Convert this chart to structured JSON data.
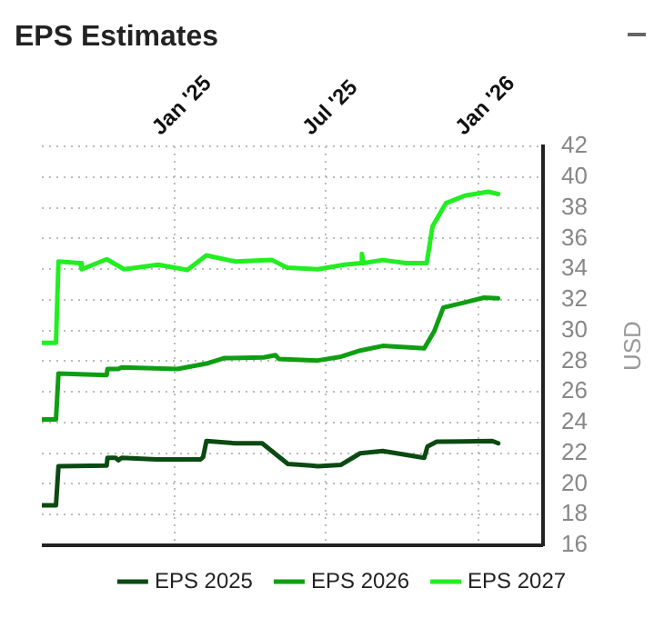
{
  "chart_data": {
    "type": "line",
    "title": "EPS Estimates",
    "ylabel": "USD",
    "xlim": [
      "2024-07-25",
      "2026-03-20"
    ],
    "xticks": [
      {
        "value": "2025-01-01",
        "label": "Jan '25"
      },
      {
        "value": "2025-07-01",
        "label": "Jul '25"
      },
      {
        "value": "2026-01-01",
        "label": "Jan '26"
      }
    ],
    "ylim": [
      16,
      42
    ],
    "yticks": [
      16,
      18,
      20,
      22,
      24,
      26,
      28,
      30,
      32,
      34,
      36,
      38,
      40,
      42
    ],
    "grid": true,
    "legend": "bottom",
    "marker": "none",
    "line_style": "solid",
    "series": [
      {
        "name": "EPS 2025",
        "color": "#0b4a12",
        "x": [
          "2024-07-25",
          "2024-08-11",
          "2024-08-14",
          "2024-10-11",
          "2024-10-12",
          "2024-10-22",
          "2024-10-25",
          "2024-10-29",
          "2024-12-10",
          "2025-02-01",
          "2025-02-04",
          "2025-02-08",
          "2025-03-15",
          "2025-04-16",
          "2025-05-17",
          "2025-06-14",
          "2025-06-22",
          "2025-07-20",
          "2025-08-12",
          "2025-09-08",
          "2025-10-28",
          "2025-11-01",
          "2025-11-12",
          "2026-01-18",
          "2026-01-25"
        ],
        "values": [
          18.6,
          18.6,
          21.15,
          21.2,
          21.7,
          21.7,
          21.55,
          21.7,
          21.6,
          21.6,
          21.75,
          22.8,
          22.65,
          22.65,
          21.3,
          21.2,
          21.15,
          21.25,
          22.0,
          22.15,
          21.7,
          22.45,
          22.75,
          22.8,
          22.65
        ]
      },
      {
        "name": "EPS 2026",
        "color": "#0f9e12",
        "x": [
          "2024-07-25",
          "2024-08-11",
          "2024-08-14",
          "2024-10-11",
          "2024-10-12",
          "2024-10-25",
          "2024-10-29",
          "2025-01-04",
          "2025-02-08",
          "2025-03-01",
          "2025-04-18",
          "2025-05-02",
          "2025-05-06",
          "2025-06-22",
          "2025-07-20",
          "2025-08-12",
          "2025-09-08",
          "2025-10-28",
          "2025-11-09",
          "2025-11-20",
          "2025-12-13",
          "2026-01-08",
          "2026-01-25"
        ],
        "values": [
          24.2,
          24.2,
          27.2,
          27.1,
          27.5,
          27.5,
          27.6,
          27.5,
          27.85,
          28.2,
          28.25,
          28.4,
          28.15,
          28.05,
          28.3,
          28.7,
          29.0,
          28.85,
          29.95,
          31.5,
          31.8,
          32.15,
          32.1
        ]
      },
      {
        "name": "EPS 2027",
        "color": "#22ee22",
        "x": [
          "2024-07-25",
          "2024-08-11",
          "2024-08-14",
          "2024-09-09",
          "2024-09-11",
          "2024-10-11",
          "2024-11-01",
          "2024-12-12",
          "2025-01-16",
          "2025-02-08",
          "2025-03-15",
          "2025-04-28",
          "2025-05-16",
          "2025-06-22",
          "2025-07-24",
          "2025-08-13",
          "2025-08-14",
          "2025-08-16",
          "2025-09-08",
          "2025-10-06",
          "2025-10-31",
          "2025-11-07",
          "2025-11-23",
          "2025-12-16",
          "2026-01-13",
          "2026-01-25"
        ],
        "values": [
          29.2,
          29.2,
          34.5,
          34.4,
          34.0,
          34.65,
          34.0,
          34.3,
          33.95,
          34.9,
          34.5,
          34.6,
          34.1,
          34.0,
          34.3,
          34.4,
          35.0,
          34.4,
          34.6,
          34.4,
          34.4,
          36.8,
          38.3,
          38.8,
          39.05,
          38.9
        ]
      }
    ]
  }
}
